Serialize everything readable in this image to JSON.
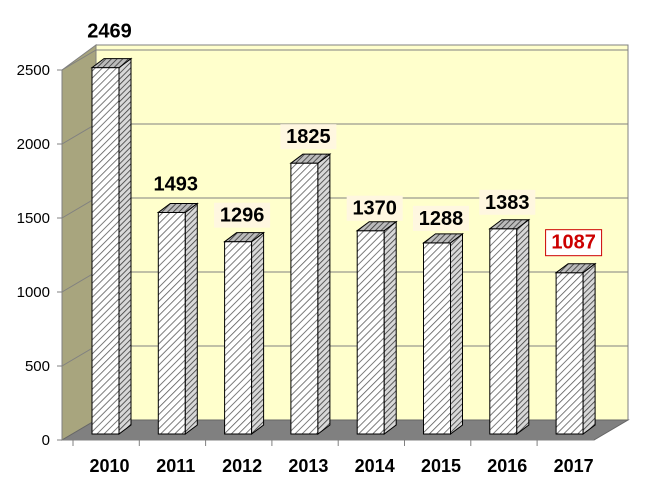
{
  "chart_data": {
    "type": "bar",
    "categories": [
      "2010",
      "2011",
      "2012",
      "2013",
      "2014",
      "2015",
      "2016",
      "2017"
    ],
    "values": [
      2469,
      1493,
      1296,
      1825,
      1370,
      1288,
      1383,
      1087
    ],
    "data_labels": [
      "2469",
      "1493",
      "1296",
      "1825",
      "1370",
      "1288",
      "1383",
      "1087"
    ],
    "y_ticks": [
      "0",
      "500",
      "1000",
      "1500",
      "2000",
      "2500"
    ],
    "ylim": [
      0,
      2500
    ],
    "grid": true,
    "three_d": true,
    "title": "",
    "xlabel": "",
    "ylabel": "",
    "highlight_index": 7,
    "colors": {
      "plot_background": "#FFFFCC",
      "side_wall": "#A8A57E",
      "floor": "#808080",
      "bar_fill": "#FFFFFF",
      "bar_hatch": "#555555",
      "highlight_label": "#CC0000",
      "label_background": "#FFF7E0"
    }
  }
}
